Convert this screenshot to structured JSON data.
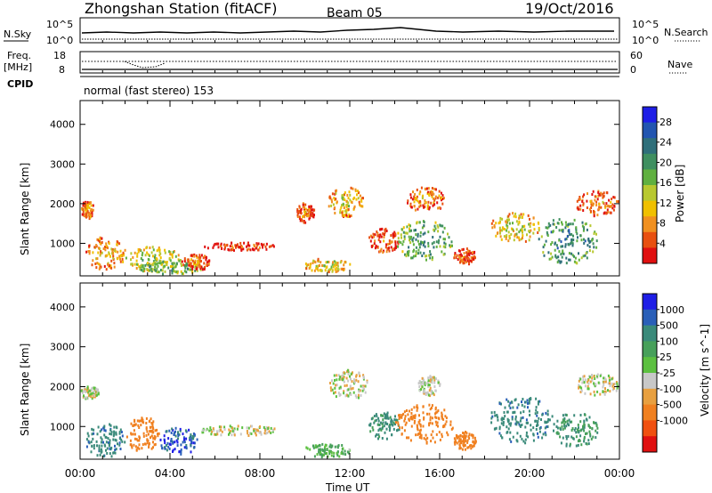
{
  "header": {
    "title": "Zhongshan Station (fitACF)",
    "beam": "Beam 05",
    "date": "19/Oct/2016"
  },
  "strips": {
    "nsky_label": "N.Sky",
    "nsky_ticks": [
      "10^5",
      "10^0"
    ],
    "nsearch_label": "N.Search",
    "nsearch_ticks": [
      "10^5",
      "10^0"
    ],
    "freq_label": "Freq.",
    "freq_unit": "[MHz]",
    "freq_ticks": [
      "18",
      "8"
    ],
    "nave_label": "Nave",
    "nave_ticks": [
      "60",
      "0"
    ],
    "cpid_label": "CPID",
    "cpid_text": "normal (fast stereo) 153"
  },
  "xaxis": {
    "label": "Time UT",
    "ticks": [
      "00:00",
      "04:00",
      "08:00",
      "12:00",
      "16:00",
      "20:00",
      "00:00"
    ]
  },
  "colors": {
    "power": [
      "#1e1ee6",
      "#2255b0",
      "#2f6f7a",
      "#3f8f60",
      "#60b040",
      "#b8c830",
      "#f0c000",
      "#f09020",
      "#e85010",
      "#e01010"
    ],
    "velocity": [
      "#1e1ee6",
      "#2a5fb8",
      "#3a8a7a",
      "#47a05a",
      "#5cc040",
      "#c8c8c8",
      "#e8a040",
      "#f08020",
      "#f05010",
      "#e01010"
    ]
  },
  "chart_data": [
    {
      "type": "heatmap",
      "title": "Power",
      "ylabel": "Slant Range [km]",
      "xlabel": "",
      "xlim": [
        "00:00",
        "24:00"
      ],
      "ylim": [
        180,
        4600
      ],
      "yticks": [
        1000,
        2000,
        3000,
        4000
      ],
      "colorbar": {
        "label": "Power [dB]",
        "ticks": [
          4,
          8,
          12,
          16,
          20,
          24,
          28
        ],
        "range": [
          0,
          31
        ]
      },
      "clusters": [
        {
          "t": [
            0.0,
            0.6
          ],
          "r": [
            1650,
            2100
          ],
          "v": 10
        },
        {
          "t": [
            0.2,
            2.0
          ],
          "r": [
            350,
            1200
          ],
          "v": 12
        },
        {
          "t": [
            2.0,
            4.5
          ],
          "r": [
            300,
            950
          ],
          "v": 17
        },
        {
          "t": [
            2.5,
            5.5
          ],
          "r": [
            250,
            600
          ],
          "v": 21
        },
        {
          "t": [
            4.5,
            5.8
          ],
          "r": [
            350,
            750
          ],
          "v": 9
        },
        {
          "t": [
            5.5,
            8.8
          ],
          "r": [
            850,
            1050
          ],
          "v": 6
        },
        {
          "t": [
            9.6,
            10.4
          ],
          "r": [
            1550,
            2050
          ],
          "v": 9
        },
        {
          "t": [
            9.9,
            12.0
          ],
          "r": [
            300,
            650
          ],
          "v": 15
        },
        {
          "t": [
            11.0,
            12.6
          ],
          "r": [
            1700,
            2450
          ],
          "v": 13
        },
        {
          "t": [
            12.8,
            14.2
          ],
          "r": [
            800,
            1400
          ],
          "v": 8
        },
        {
          "t": [
            14.0,
            16.6
          ],
          "r": [
            600,
            1600
          ],
          "v": 22
        },
        {
          "t": [
            14.5,
            16.2
          ],
          "r": [
            1800,
            2450
          ],
          "v": 10
        },
        {
          "t": [
            16.6,
            17.6
          ],
          "r": [
            500,
            900
          ],
          "v": 8
        },
        {
          "t": [
            18.2,
            20.5
          ],
          "r": [
            1050,
            1800
          ],
          "v": 15
        },
        {
          "t": [
            20.3,
            23.0
          ],
          "r": [
            500,
            1700
          ],
          "v": 24
        },
        {
          "t": [
            22.0,
            24.0
          ],
          "r": [
            1700,
            2350
          ],
          "v": 9
        }
      ]
    },
    {
      "type": "heatmap",
      "title": "Velocity",
      "ylabel": "Slant Range [km]",
      "xlabel": "Time UT",
      "xlim": [
        "00:00",
        "24:00"
      ],
      "ylim": [
        180,
        4600
      ],
      "yticks": [
        1000,
        2000,
        3000,
        4000
      ],
      "colorbar": {
        "label": "Velocity [m s^-1]",
        "ticks": [
          "1000",
          "500",
          "100",
          "25",
          "-25",
          "-100",
          "-500",
          "-1000"
        ]
      },
      "clusters": [
        {
          "t": [
            0.0,
            0.8
          ],
          "r": [
            1700,
            2050
          ],
          "v": 0
        },
        {
          "t": [
            0.2,
            2.0
          ],
          "r": [
            250,
            1100
          ],
          "v": 300
        },
        {
          "t": [
            2.0,
            3.5
          ],
          "r": [
            400,
            1300
          ],
          "v": -250
        },
        {
          "t": [
            3.5,
            5.2
          ],
          "r": [
            300,
            1000
          ],
          "v": 600
        },
        {
          "t": [
            5.3,
            8.8
          ],
          "r": [
            800,
            1050
          ],
          "v": 0
        },
        {
          "t": [
            9.9,
            12.0
          ],
          "r": [
            250,
            600
          ],
          "v": 80
        },
        {
          "t": [
            11.0,
            12.8
          ],
          "r": [
            1700,
            2450
          ],
          "v": 0
        },
        {
          "t": [
            12.8,
            14.2
          ],
          "r": [
            700,
            1400
          ],
          "v": 200
        },
        {
          "t": [
            14.0,
            16.6
          ],
          "r": [
            600,
            1600
          ],
          "v": -250
        },
        {
          "t": [
            15.0,
            16.0
          ],
          "r": [
            1800,
            2300
          ],
          "v": 0
        },
        {
          "t": [
            16.6,
            17.6
          ],
          "r": [
            450,
            900
          ],
          "v": -250
        },
        {
          "t": [
            18.2,
            21.0
          ],
          "r": [
            600,
            1800
          ],
          "v": 300
        },
        {
          "t": [
            21.0,
            23.0
          ],
          "r": [
            500,
            1400
          ],
          "v": 150
        },
        {
          "t": [
            22.0,
            24.0
          ],
          "r": [
            1800,
            2350
          ],
          "v": 0
        }
      ]
    }
  ]
}
